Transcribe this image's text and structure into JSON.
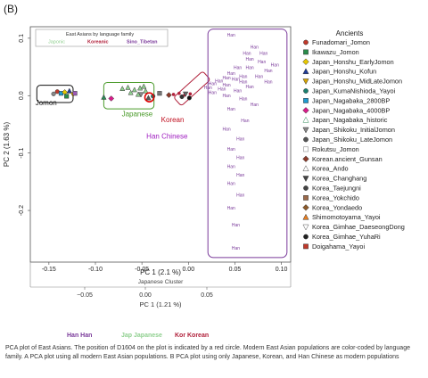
{
  "chart_data": [
    {
      "type": "scatter",
      "panel_label": "(B)",
      "title": "",
      "xlabel": "PC 1 (2.1 %)",
      "ylabel": "PC 2 (1.63 %)",
      "xlim": [
        -0.17,
        0.11
      ],
      "ylim": [
        -0.29,
        0.12
      ],
      "xticks": [
        -0.15,
        -0.1,
        -0.05,
        0.0,
        0.05,
        0.1
      ],
      "xtick_labels": [
        "-0.15",
        "-0.10",
        "-0.05",
        "0.00",
        "0.05",
        "0.10"
      ],
      "yticks": [
        0.1,
        0.0,
        -0.1,
        -0.2
      ],
      "ytick_labels": [
        "0.1",
        "0.0",
        "-0.1",
        "-0.2"
      ],
      "inset_legend": {
        "title": "East Asians by language family",
        "entries": [
          {
            "label": "Japonic",
            "color": "#90d090"
          },
          {
            "label": "Koreanic",
            "color": "#b0203a"
          },
          {
            "label": "Sino_Tibetan",
            "color": "#7a3a9a"
          }
        ]
      },
      "group_labels": [
        {
          "text": "Jomon",
          "color": "#222222",
          "x": -0.153,
          "y": -0.017
        },
        {
          "text": "Japanese",
          "color": "#4a9a2a",
          "x": -0.055,
          "y": -0.036
        },
        {
          "text": "Korean",
          "color": "#c01020",
          "x": -0.017,
          "y": -0.046
        },
        {
          "text": "Han Chinese",
          "color": "#a020c0",
          "x": -0.023,
          "y": -0.075
        }
      ],
      "point_label": "Han",
      "han_points": [
        [
          0.046,
          0.103
        ],
        [
          0.071,
          0.082
        ],
        [
          0.063,
          0.071
        ],
        [
          0.081,
          0.071
        ],
        [
          0.066,
          0.061
        ],
        [
          0.079,
          0.056
        ],
        [
          0.093,
          0.051
        ],
        [
          0.053,
          0.046
        ],
        [
          0.066,
          0.046
        ],
        [
          0.086,
          0.041
        ],
        [
          0.046,
          0.036
        ],
        [
          0.059,
          0.031
        ],
        [
          0.076,
          0.031
        ],
        [
          0.041,
          0.028
        ],
        [
          0.051,
          0.026
        ],
        [
          0.033,
          0.023
        ],
        [
          0.059,
          0.021
        ],
        [
          0.086,
          0.021
        ],
        [
          0.026,
          0.018
        ],
        [
          0.041,
          0.016
        ],
        [
          0.066,
          0.013
        ],
        [
          0.021,
          0.011
        ],
        [
          0.036,
          0.009
        ],
        [
          0.053,
          0.006
        ],
        [
          0.026,
          0.003
        ],
        [
          0.041,
          -0.003
        ],
        [
          0.059,
          -0.008
        ],
        [
          0.071,
          -0.018
        ],
        [
          0.046,
          -0.026
        ],
        [
          0.061,
          -0.046
        ],
        [
          0.041,
          -0.061
        ],
        [
          0.056,
          -0.078
        ],
        [
          0.046,
          -0.096
        ],
        [
          0.056,
          -0.111
        ],
        [
          0.046,
          -0.126
        ],
        [
          0.056,
          -0.141
        ],
        [
          0.046,
          -0.156
        ],
        [
          0.056,
          -0.176
        ],
        [
          0.046,
          -0.198
        ],
        [
          0.051,
          -0.228
        ],
        [
          0.051,
          -0.268
        ]
      ],
      "japonic_points": [
        [
          -0.071,
          0.012
        ],
        [
          -0.065,
          0.014
        ],
        [
          -0.058,
          0.01
        ],
        [
          -0.052,
          0.013
        ],
        [
          -0.046,
          0.008
        ],
        [
          -0.062,
          0.005
        ],
        [
          -0.048,
          0.016
        ],
        [
          -0.054,
          0.002
        ]
      ],
      "koreanic_points": [
        [
          -0.016,
          0.002
        ],
        [
          -0.01,
          0.004
        ],
        [
          -0.004,
          0.001
        ],
        [
          0.002,
          0.003
        ],
        [
          -0.007,
          -0.002
        ]
      ],
      "ancient_points": [
        {
          "shape": "circle",
          "color": "#c0392b",
          "x": -0.141,
          "y": 0.007
        },
        {
          "shape": "square",
          "color": "#1f9bd0",
          "x": -0.137,
          "y": 0.004
        },
        {
          "shape": "diamond",
          "color": "#e6c700",
          "x": -0.133,
          "y": 0.006
        },
        {
          "shape": "triangle",
          "color": "#1f3b99",
          "x": -0.128,
          "y": 0.008
        },
        {
          "shape": "triangle-down",
          "color": "#d6a400",
          "x": -0.124,
          "y": 0.002
        },
        {
          "shape": "square",
          "color": "#2a8c4a",
          "x": -0.131,
          "y": -0.001
        },
        {
          "shape": "square",
          "color": "#9b59b6",
          "x": -0.122,
          "y": 0.004
        },
        {
          "shape": "circle",
          "color": "#888888",
          "x": -0.145,
          "y": 0.003
        },
        {
          "shape": "diamond",
          "color": "#d81b8a",
          "x": -0.083,
          "y": -0.005
        },
        {
          "shape": "triangle",
          "color": "#2e8b57",
          "x": -0.091,
          "y": -0.003
        },
        {
          "shape": "triangle-down",
          "color": "#888888",
          "x": -0.051,
          "y": 0.002
        },
        {
          "shape": "circle",
          "color": "#1a7f6e",
          "x": -0.038,
          "y": -0.001
        },
        {
          "shape": "square",
          "color": "#777777",
          "x": -0.031,
          "y": 0.004
        },
        {
          "shape": "diamond",
          "color": "#8b3a2a",
          "x": -0.021,
          "y": 0.001
        },
        {
          "shape": "triangle",
          "color": "#555555",
          "x": -0.043,
          "y": -0.004
        },
        {
          "shape": "circle",
          "color": "#333333",
          "x": -0.007,
          "y": -0.002
        },
        {
          "shape": "triangle-down",
          "color": "#666666",
          "x": -0.003,
          "y": 0.003
        },
        {
          "shape": "circle",
          "color": "#111111",
          "x": 0.001,
          "y": -0.004
        }
      ],
      "d1604_position": {
        "x": -0.042,
        "y": -0.003,
        "color": "#e00000"
      },
      "legend": {
        "title": "Ancients",
        "entries": [
          {
            "label": "Funadomari_Jomon",
            "shape": "circle",
            "color": "#c0392b"
          },
          {
            "label": "Ikawazu_Jomon",
            "shape": "square",
            "color": "#2a8c4a"
          },
          {
            "label": "Japan_Honshu_EarlyJomon",
            "shape": "diamond",
            "color": "#e6c700"
          },
          {
            "label": "Japan_Honshu_Kofun",
            "shape": "triangle",
            "color": "#1f3b99"
          },
          {
            "label": "Japan_Honshu_MidLateJomon",
            "shape": "triangle-down",
            "color": "#d6a400"
          },
          {
            "label": "Japan_KumaNishioda_Yayoi",
            "shape": "circle",
            "color": "#1a7f6e"
          },
          {
            "label": "Japan_Nagabaka_2800BP",
            "shape": "square",
            "color": "#1f9bd0"
          },
          {
            "label": "Japan_Nagabaka_4000BP",
            "shape": "diamond",
            "color": "#d81b8a"
          },
          {
            "label": "Japan_Nagabaka_historic",
            "shape": "triangle-open",
            "color": "#2e8b57"
          },
          {
            "label": "Japan_Shikoku_InitialJomon",
            "shape": "triangle-down",
            "color": "#888888"
          },
          {
            "label": "Japan_Shikoku_LateJomon",
            "shape": "circle",
            "color": "#555555"
          },
          {
            "label": "Rokutsu_Jomon",
            "shape": "square-open",
            "color": "#777777"
          },
          {
            "label": "Korean.ancient_Gunsan",
            "shape": "diamond",
            "color": "#8b3a2a"
          },
          {
            "label": "Korea_Ando",
            "shape": "triangle-open",
            "color": "#555555"
          },
          {
            "label": "Korea_Changhang",
            "shape": "triangle-down",
            "color": "#444444"
          },
          {
            "label": "Korea_Taejungni",
            "shape": "circle",
            "color": "#444444"
          },
          {
            "label": "Korea_Yokchido",
            "shape": "square",
            "color": "#9c6a4a"
          },
          {
            "label": "Korea_Yondaedo",
            "shape": "diamond",
            "color": "#8b5a2b"
          },
          {
            "label": "Shimomotoyama_Yayoi",
            "shape": "triangle",
            "color": "#e67e22"
          },
          {
            "label": "Korea_Gimhae_DaeseongDong",
            "shape": "triangle-down-open",
            "color": "#555555"
          },
          {
            "label": "Korea_Gimhae_YuhaRi",
            "shape": "circle",
            "color": "#222222"
          },
          {
            "label": "Doigahama_Yayoi",
            "shape": "square",
            "color": "#c0392b"
          }
        ]
      }
    },
    {
      "type": "scatter",
      "title": "",
      "xlabel": "PC 1 (1.21 %)",
      "xticks": [
        -0.05,
        0.0,
        0.05
      ],
      "xtick_labels": [
        "−0.05",
        "0.00",
        "0.05"
      ],
      "cluster_label": "Japanese Cluster",
      "legend": {
        "entries": [
          {
            "label": "Han Han",
            "color": "#7a3a9a"
          },
          {
            "label": "Jap Japanese",
            "color": "#90d090"
          },
          {
            "label": "Kor Korean",
            "color": "#b0203a"
          }
        ]
      }
    }
  ],
  "caption": "PCA plot of East Asians. The position of D1604 on the plot is indicated by a red circle. Modern East Asian populations are color-coded by language family. A PCA plot using all modern East Asian populations. B PCA plot using only Japanese, Korean, and Han Chinese as modern populations",
  "caption_letters": [
    "A",
    "B"
  ]
}
